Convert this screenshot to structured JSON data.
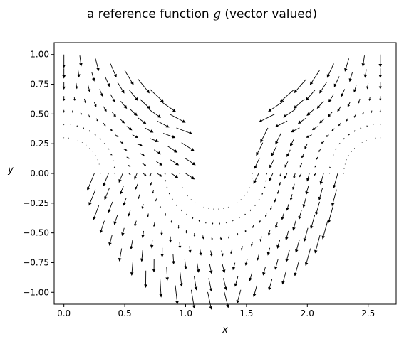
{
  "chart_data": {
    "type": "quiver",
    "title": {
      "prefix": "a reference function ",
      "symbol": "g",
      "suffix": " (vector valued)"
    },
    "xlabel": "x",
    "ylabel": "y",
    "xlim": [
      -0.08,
      2.73
    ],
    "ylim": [
      -1.1,
      1.1
    ],
    "x_ticks": [
      0.0,
      0.5,
      1.0,
      1.5,
      2.0,
      2.5
    ],
    "x_tick_labels": [
      "0.0",
      "0.5",
      "1.0",
      "1.5",
      "2.0",
      "2.5"
    ],
    "y_ticks": [
      1.0,
      0.75,
      0.5,
      0.25,
      0.0,
      -0.25,
      -0.5,
      -0.75,
      -1.0
    ],
    "y_tick_labels": [
      "1.00",
      "0.75",
      "0.50",
      "0.25",
      "0.00",
      "−0.25",
      "−0.50",
      "−0.75",
      "−1.00"
    ],
    "grid": false,
    "arrow_color": "#000000",
    "field": {
      "description_of_domain": "vectors sampled on three annular sectors forming a W-shaped region",
      "sectors": [
        {
          "center": [
            0.0,
            0.0
          ],
          "r_range": [
            0.3,
            1.0
          ],
          "theta_deg_range": [
            0,
            90
          ],
          "n_r": 7,
          "n_theta": 13
        },
        {
          "center": [
            1.25,
            0.0
          ],
          "r_range": [
            0.3,
            1.0
          ],
          "theta_deg_range": [
            180,
            360
          ],
          "n_r": 7,
          "n_theta": 24
        },
        {
          "center": [
            2.6,
            0.0
          ],
          "r_range": [
            0.3,
            1.0
          ],
          "theta_deg_range": [
            90,
            180
          ],
          "n_r": 7,
          "n_theta": 13
        }
      ]
    }
  }
}
